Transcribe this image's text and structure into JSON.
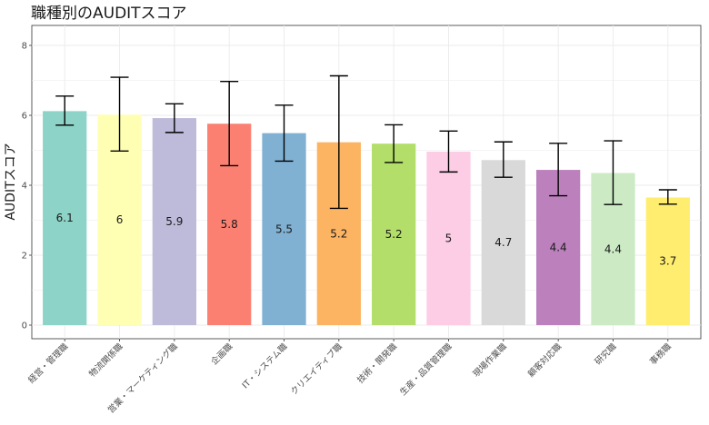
{
  "chart_data": {
    "type": "bar",
    "title": "職種別のAUDITスコア",
    "xlabel": "",
    "ylabel": "AUDITスコア",
    "ylim": [
      0,
      8.6
    ],
    "yticks": [
      0,
      2,
      4,
      6,
      8
    ],
    "grid": true,
    "categories": [
      "経営・管理職",
      "物流関係職",
      "営業・マーケティング職",
      "企画職",
      "IT・システム職",
      "クリエイティブ職",
      "技術・開発職",
      "生産・品質管理職",
      "現場作業職",
      "顧客対応職",
      "研究職",
      "事務職"
    ],
    "values": [
      6.12,
      6.02,
      5.92,
      5.76,
      5.49,
      5.23,
      5.19,
      4.96,
      4.72,
      4.44,
      4.35,
      3.65
    ],
    "labels": [
      "6.1",
      "6",
      "5.9",
      "5.8",
      "5.5",
      "5.2",
      "5.2",
      "5",
      "4.7",
      "4.4",
      "4.4",
      "3.7"
    ],
    "error_low": [
      5.72,
      4.98,
      5.51,
      4.56,
      4.69,
      3.34,
      4.65,
      4.38,
      4.23,
      3.7,
      3.45,
      3.46
    ],
    "error_high": [
      6.55,
      7.09,
      6.33,
      6.97,
      6.29,
      7.13,
      5.73,
      5.55,
      5.24,
      5.2,
      5.27,
      3.87
    ],
    "colors": [
      "#8DD3C7",
      "#FFFFB3",
      "#BEBADA",
      "#FB8072",
      "#80B1D3",
      "#FDB462",
      "#B3DE69",
      "#FCCDE5",
      "#D9D9D9",
      "#BC80BD",
      "#CCEBC5",
      "#FFED6F"
    ]
  }
}
